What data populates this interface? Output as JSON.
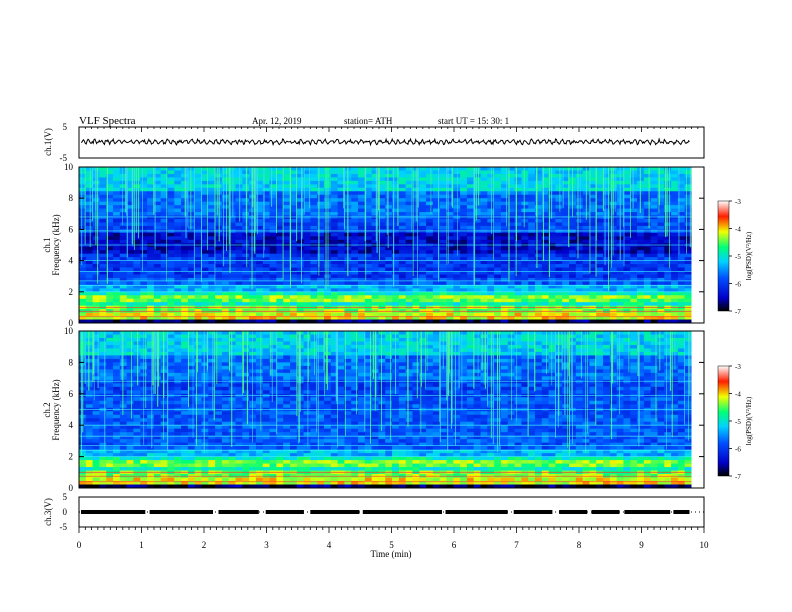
{
  "header": {
    "title": "VLF  Spectra",
    "date": "Apr. 12, 2019",
    "station": "station= ATH",
    "start": "start  UT  =    15: 30: 1"
  },
  "chart_data": [
    {
      "type": "line",
      "name": "ch1-waveform",
      "ylabel": "ch.1(V)",
      "ylim": [
        -5,
        5
      ],
      "ytick_labels": [
        "5",
        "-5"
      ],
      "xlim": [
        0,
        10
      ],
      "approx_level": 0.2,
      "approx_amplitude": 0.8
    },
    {
      "type": "heatmap",
      "name": "ch1-spectrogram",
      "ylabel": "ch.1\nFrequency  (kHz)",
      "ylim": [
        0,
        10
      ],
      "ytick_labels": [
        "0",
        "2",
        "4",
        "6",
        "8",
        "10"
      ],
      "xlim": [
        0,
        9.8
      ],
      "colorbar": {
        "label": "log(PSD)(V²/Hz)",
        "range": [
          -7,
          -3
        ],
        "tick_labels": [
          "-3",
          "-4",
          "-5",
          "-6",
          "-7"
        ],
        "colors": [
          "#000040",
          "#0000ff",
          "#00c8ff",
          "#00ff80",
          "#ffff00",
          "#ff0000",
          "#ffffff"
        ]
      }
    },
    {
      "type": "heatmap",
      "name": "ch2-spectrogram",
      "ylabel": "ch.2\nFrequency  (kHz)",
      "ylim": [
        0,
        10
      ],
      "ytick_labels": [
        "0",
        "2",
        "4",
        "6",
        "8",
        "10"
      ],
      "xlim": [
        0,
        9.8
      ],
      "colorbar": {
        "label": "log(PSD)(V²/Hz)",
        "range": [
          -7,
          -3
        ],
        "tick_labels": [
          "-3",
          "-4",
          "-5",
          "-6",
          "-7"
        ],
        "colors": [
          "#000040",
          "#0000ff",
          "#00c8ff",
          "#00ff80",
          "#ffff00",
          "#ff0000",
          "#ffffff"
        ]
      }
    },
    {
      "type": "line",
      "name": "ch3-trace",
      "ylabel": "ch.3(V)",
      "ylim": [
        -5,
        5
      ],
      "ytick_labels": [
        "5",
        "0",
        "-5"
      ],
      "xlim": [
        0,
        10
      ],
      "approx_level": 0
    }
  ],
  "xaxis": {
    "label": "Time  (min)",
    "range": [
      0,
      10
    ],
    "tick_labels": [
      "0",
      "1",
      "2",
      "3",
      "4",
      "5",
      "6",
      "7",
      "8",
      "9",
      "10"
    ]
  }
}
